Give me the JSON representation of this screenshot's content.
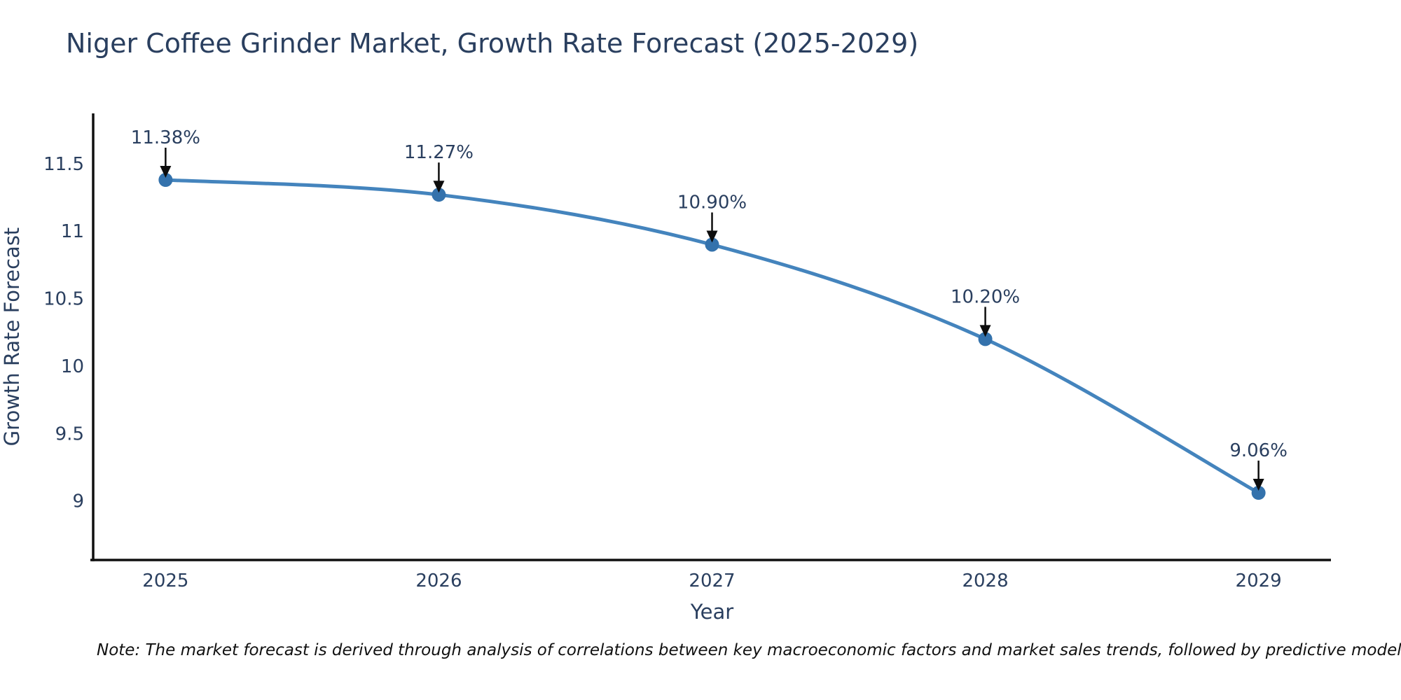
{
  "title": "Niger Coffee Grinder Market, Growth Rate Forecast (2025-2029)",
  "note": "Note: The market forecast is derived through analysis of correlations between key macroeconomic factors and market sales trends, followed by predictive modeling to project future sal",
  "colors": {
    "background": "#ffffff",
    "title_text": "#2a3f5f",
    "axis_text": "#2a3f5f",
    "annotation_text": "#2a3f5f",
    "line": "#4484bd",
    "marker": "#3472ac",
    "arrow": "#0d0d0d",
    "spine": "#101010",
    "note_text": "#111111"
  },
  "chart_data": {
    "type": "line",
    "title": "Niger Coffee Grinder Market, Growth Rate Forecast (2025-2029)",
    "xlabel": "Year",
    "ylabel": "Growth Rate Forecast",
    "x": [
      2025,
      2026,
      2027,
      2028,
      2029
    ],
    "values": [
      11.38,
      11.27,
      10.9,
      10.2,
      9.06
    ],
    "point_labels": [
      "11.38%",
      "11.27%",
      "10.90%",
      "10.20%",
      "9.06%"
    ],
    "x_tick_labels": [
      "2025",
      "2026",
      "2027",
      "2028",
      "2029"
    ],
    "y_ticks": [
      9,
      9.5,
      10,
      10.5,
      11,
      11.5
    ],
    "y_tick_labels": [
      "9",
      "9.5",
      "10",
      "10.5",
      "11",
      "11.5"
    ],
    "xlim": [
      2024.735,
      2029.265
    ],
    "ylim": [
      8.562,
      11.873
    ],
    "grid": false,
    "legend": false,
    "line_shape": "spline",
    "markers": true,
    "annotation_style": "value labels with down arrows above each point"
  }
}
